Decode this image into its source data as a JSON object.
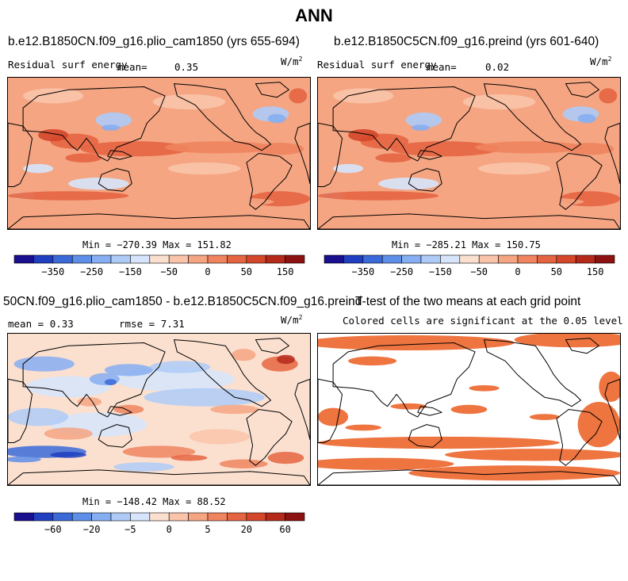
{
  "page_title": "ANN",
  "panels": {
    "p1": {
      "case": "b.e12.B1850CN.f09_g16.plio_cam1850 (yrs 655-694)",
      "field": "Residual surf energy",
      "mean_label": "mean=",
      "mean_value": "0.35",
      "units_base": "W/m",
      "units_exp": "2",
      "min_label": "Min = ",
      "min_value": "−270.39",
      "max_label": "Max = ",
      "max_value": "151.82"
    },
    "p2": {
      "case": "b.e12.B1850C5CN.f09_g16.preind (yrs 601-640)",
      "field": "Residual surf energy",
      "mean_label": "mean=",
      "mean_value": "0.02",
      "units_base": "W/m",
      "units_exp": "2",
      "min_label": "Min = ",
      "min_value": "−285.21",
      "max_label": "Max = ",
      "max_value": "150.75"
    },
    "p3": {
      "case": "50CN.f09_g16.plio_cam1850 - b.e12.B1850C5CN.f09_g16.preind",
      "mean_label": "mean = ",
      "mean_value": "0.33",
      "rmse_label": "rmse = ",
      "rmse_value": "7.31",
      "units_base": "W/m",
      "units_exp": "2",
      "min_label": "Min = ",
      "min_value": "−148.42",
      "max_label": "Max = ",
      "max_value": "88.52"
    },
    "p4": {
      "title": "T-test of the two means at each grid point",
      "subtitle": "Colored cells are significant at the 0.05 level"
    }
  },
  "chart_data": [
    {
      "type": "heatmap",
      "title": "b.e12.B1850CN.f09_g16.plio_cam1850 (yrs 655-694)",
      "variable": "Residual surf energy",
      "units": "W/m2",
      "mean": 0.35,
      "min": -270.39,
      "max": 151.82,
      "colorbar_ticks": [
        "−350",
        "−250",
        "−150",
        "−50",
        "0",
        "50",
        "150"
      ],
      "colors": [
        "#1a0f8c",
        "#1f3fc0",
        "#3a6ad8",
        "#5e8ee8",
        "#86aef2",
        "#aecbf7",
        "#d6e5fb",
        "#fbe0d0",
        "#f9c4aa",
        "#f5a582",
        "#ef845f",
        "#e56542",
        "#d4472a",
        "#b5291a",
        "#8c1111"
      ]
    },
    {
      "type": "heatmap",
      "title": "b.e12.B1850C5CN.f09_g16.preind (yrs 601-640)",
      "variable": "Residual surf energy",
      "units": "W/m2",
      "mean": 0.02,
      "min": -285.21,
      "max": 150.75,
      "colorbar_ticks": [
        "−350",
        "−250",
        "−150",
        "−50",
        "0",
        "50",
        "150"
      ],
      "colors": [
        "#1a0f8c",
        "#1f3fc0",
        "#3a6ad8",
        "#5e8ee8",
        "#86aef2",
        "#aecbf7",
        "#d6e5fb",
        "#fbe0d0",
        "#f9c4aa",
        "#f5a582",
        "#ef845f",
        "#e56542",
        "#d4472a",
        "#b5291a",
        "#8c1111"
      ]
    },
    {
      "type": "heatmap",
      "title": "50CN.f09_g16.plio_cam1850 - b.e12.B1850C5CN.f09_g16.preind",
      "units": "W/m2",
      "mean": 0.33,
      "rmse": 7.31,
      "min": -148.42,
      "max": 88.52,
      "colorbar_ticks": [
        "−60",
        "−20",
        "−5",
        "0",
        "5",
        "20",
        "60"
      ],
      "colors": [
        "#1a0f8c",
        "#1f3fc0",
        "#3a6ad8",
        "#5e8ee8",
        "#86aef2",
        "#aecbf7",
        "#d6e5fb",
        "#fbe0d0",
        "#f9c4aa",
        "#f5a582",
        "#ef845f",
        "#e56542",
        "#d4472a",
        "#b5291a",
        "#8c1111"
      ]
    },
    {
      "type": "heatmap",
      "title": "T-test of the two means at each grid point",
      "subtitle": "Colored cells are significant at the 0.05 level",
      "significant_color": "#ee7440"
    }
  ]
}
